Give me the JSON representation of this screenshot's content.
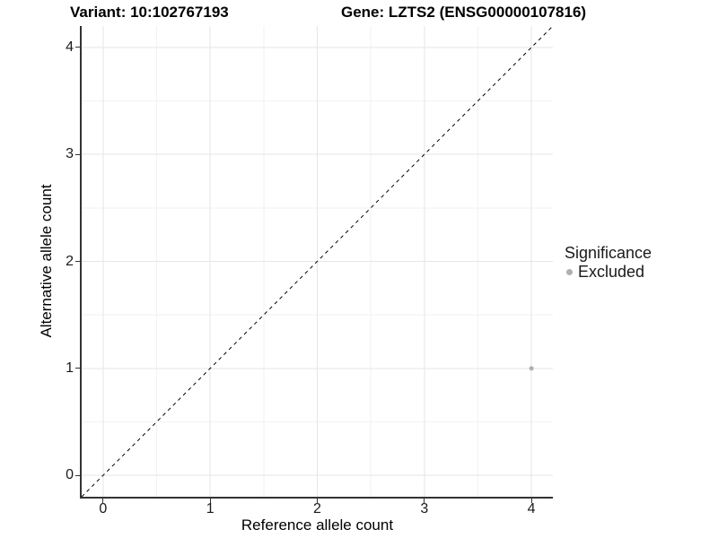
{
  "titles": {
    "variant": "Variant: 10:102767193",
    "gene": "Gene: LZTS2 (ENSG00000107816)"
  },
  "axes": {
    "x": {
      "label": "Reference allele count",
      "ticks": [
        "0",
        "1",
        "2",
        "3",
        "4"
      ],
      "tick_values": [
        0,
        1,
        2,
        3,
        4
      ],
      "range": [
        -0.2,
        4.2
      ]
    },
    "y": {
      "label": "Alternative allele count",
      "ticks": [
        "0",
        "1",
        "2",
        "3",
        "4"
      ],
      "tick_values": [
        0,
        1,
        2,
        3,
        4
      ],
      "range": [
        -0.2,
        4.2
      ]
    }
  },
  "legend": {
    "title": "Significance",
    "items": [
      {
        "label": "Excluded",
        "color": "#b0b0b0",
        "marker": "dot-icon"
      }
    ]
  },
  "chart_data": {
    "type": "scatter",
    "title": "Variant: 10:102767193   Gene: LZTS2 (ENSG00000107816)",
    "xlabel": "Reference allele count",
    "ylabel": "Alternative allele count",
    "xlim": [
      -0.2,
      4.2
    ],
    "ylim": [
      -0.2,
      4.2
    ],
    "x_ticks": [
      0,
      1,
      2,
      3,
      4
    ],
    "y_ticks": [
      0,
      1,
      2,
      3,
      4
    ],
    "grid": "major-and-minor",
    "legend_position": "right",
    "series": [
      {
        "name": "Excluded",
        "color": "#b0b0b0",
        "points": [
          {
            "x": 4,
            "y": 1
          }
        ]
      }
    ],
    "reference_line": {
      "type": "identity y=x",
      "style": "dashed",
      "color": "#000000"
    }
  },
  "colors": {
    "grid_major": "#e6e6e6",
    "grid_minor": "#f2f2f2",
    "axis_line": "#333333",
    "point": "#b0b0b0",
    "dashed_line": "#000000"
  }
}
